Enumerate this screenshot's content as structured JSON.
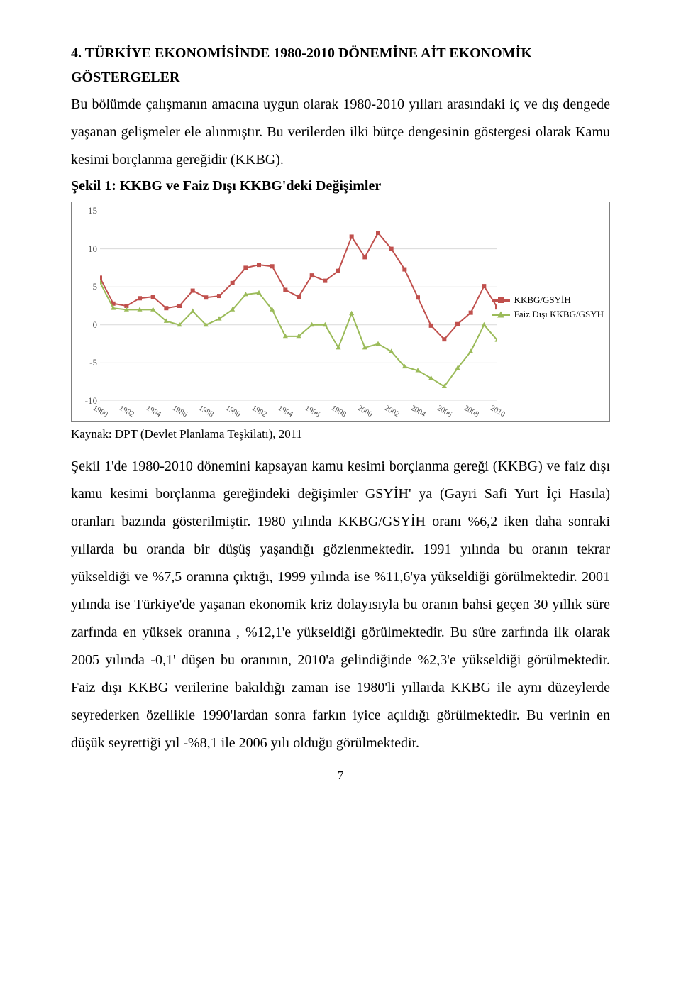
{
  "heading_line1": "4. TÜRKİYE EKONOMİSİNDE 1980-2010 DÖNEMİNE AİT EKONOMİK",
  "heading_line2": "GÖSTERGELER",
  "intro_text": "Bu bölümde çalışmanın amacına uygun olarak 1980-2010 yılları arasındaki iç ve dış dengede yaşanan gelişmeler ele alınmıştır. Bu verilerden ilki bütçe dengesinin göstergesi olarak Kamu kesimi borçlanma gereğidir (KKBG).",
  "figure_caption": "Şekil 1: KKBG ve Faiz Dışı KKBG'deki Değişimler",
  "source_line": "Kaynak: DPT (Devlet Planlama Teşkilatı), 2011",
  "discussion_text": "Şekil 1'de 1980-2010 dönemini kapsayan kamu kesimi borçlanma gereği (KKBG) ve faiz dışı kamu kesimi borçlanma gereğindeki değişimler GSYİH' ya (Gayri Safi Yurt İçi Hasıla) oranları bazında gösterilmiştir. 1980 yılında KKBG/GSYİH oranı %6,2 iken daha sonraki yıllarda bu oranda bir düşüş yaşandığı gözlenmektedir. 1991 yılında bu oranın tekrar yükseldiği ve %7,5 oranına çıktığı, 1999 yılında ise %11,6'ya yükseldiği görülmektedir. 2001 yılında ise Türkiye'de yaşanan ekonomik kriz dolayısıyla bu oranın bahsi geçen 30 yıllık süre zarfında en yüksek oranına , %12,1'e yükseldiği görülmektedir. Bu süre zarfında ilk olarak 2005 yılında -0,1' düşen bu oranının, 2010'a gelindiğinde %2,3'e yükseldiği görülmektedir. Faiz dışı KKBG verilerine bakıldığı zaman ise 1980'li yıllarda KKBG ile aynı düzeylerde seyrederken özellikle 1990'lardan sonra farkın iyice açıldığı görülmektedir. Bu verinin en düşük seyrettiği yıl -%8,1 ile 2006 yılı olduğu görülmektedir.",
  "page_number": "7",
  "chart": {
    "type": "line",
    "background_color": "#ffffff",
    "grid_color": "#d9d9d9",
    "series": [
      {
        "name": "KKBG/GSYİH",
        "color": "#c0504d",
        "marker": "square",
        "values": [
          6.2,
          2.8,
          2.5,
          3.5,
          3.7,
          2.2,
          2.5,
          4.5,
          3.6,
          3.8,
          5.5,
          7.5,
          7.9,
          7.7,
          4.6,
          3.7,
          6.5,
          5.8,
          7.1,
          11.6,
          8.9,
          12.1,
          10.0,
          7.3,
          3.6,
          -0.1,
          -1.9,
          0.1,
          1.6,
          5.1,
          2.3
        ]
      },
      {
        "name": "Faiz Dışı KKBG/GSYH",
        "color": "#9bbb59",
        "marker": "triangle",
        "values": [
          5.6,
          2.2,
          2.0,
          2.0,
          2.0,
          0.5,
          0.0,
          1.8,
          0.0,
          0.8,
          2.0,
          4.0,
          4.2,
          2.0,
          -1.5,
          -1.5,
          0.0,
          0.0,
          -3.0,
          1.5,
          -3.0,
          -2.5,
          -3.5,
          -5.5,
          -6.0,
          -7.0,
          -8.1,
          -5.7,
          -3.5,
          0.0,
          -2.0
        ]
      }
    ],
    "x_labels": [
      "1980",
      "1982",
      "1984",
      "1986",
      "1988",
      "1990",
      "1992",
      "1994",
      "1996",
      "1998",
      "2000",
      "2002",
      "2004",
      "2006",
      "2008",
      "2010"
    ],
    "y_ticks": [
      15,
      10,
      5,
      0,
      -5,
      -10
    ],
    "ylim": [
      -10,
      15
    ],
    "xlim": [
      0,
      30
    ],
    "title_fontsize": 20,
    "label_fontsize": 13,
    "line_width": 2,
    "marker_size": 6
  }
}
